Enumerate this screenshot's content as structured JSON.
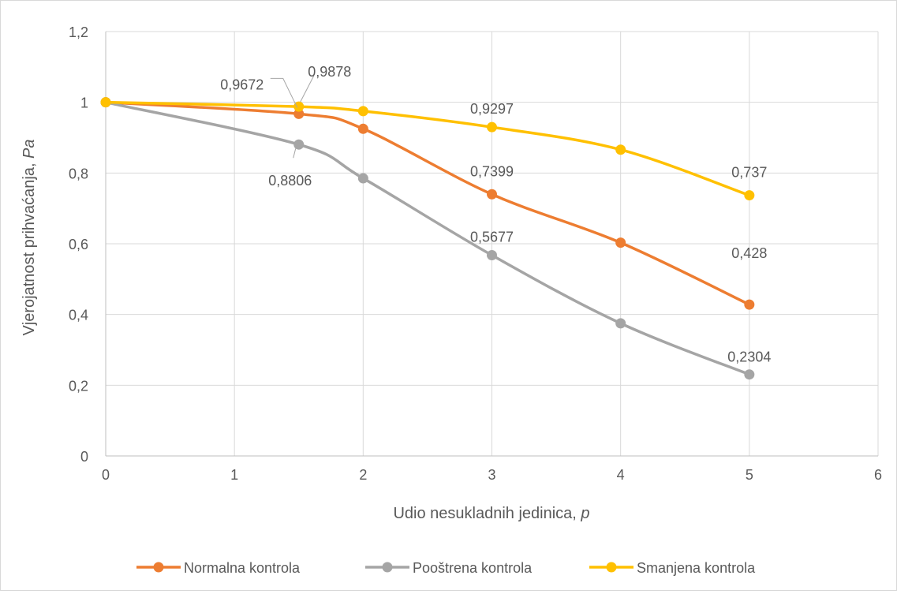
{
  "chart_data": {
    "type": "line",
    "title": "",
    "xlabel": "Udio nesukladnih jedinica, ",
    "xlabel_italic": "p",
    "ylabel": "Vjerojatnost prihvaćanja, ",
    "ylabel_italic": "Pa",
    "xlim": [
      0,
      6
    ],
    "ylim": [
      0,
      1.2
    ],
    "x_ticks": [
      "0",
      "1",
      "2",
      "3",
      "4",
      "5",
      "6"
    ],
    "y_ticks": [
      "0",
      "0,2",
      "0,4",
      "0,6",
      "0,8",
      "1",
      "1,2"
    ],
    "grid": true,
    "legend_position": "bottom",
    "series": [
      {
        "name": "Normalna kontrola",
        "color": "#ed7d31",
        "x": [
          0,
          1.5,
          2,
          3,
          4,
          5
        ],
        "y": [
          1,
          0.9672,
          0.925,
          0.7399,
          0.603,
          0.428
        ],
        "labels": [
          "",
          "0,9672",
          "",
          "0,7399",
          "",
          "0,428"
        ]
      },
      {
        "name": "Pooštrena kontrola",
        "color": "#a5a5a5",
        "x": [
          0,
          1.5,
          2,
          3,
          4,
          5
        ],
        "y": [
          1,
          0.8806,
          0.785,
          0.5677,
          0.375,
          0.2304
        ],
        "labels": [
          "",
          "0,8806",
          "",
          "0,5677",
          "",
          "0,2304"
        ]
      },
      {
        "name": "Smanjena kontrola",
        "color": "#ffc000",
        "x": [
          0,
          1.5,
          2,
          3,
          4,
          5
        ],
        "y": [
          1,
          0.9878,
          0.975,
          0.9297,
          0.866,
          0.737
        ],
        "labels": [
          "",
          "0,9878",
          "",
          "0,9297",
          "",
          "0,737"
        ]
      }
    ]
  }
}
